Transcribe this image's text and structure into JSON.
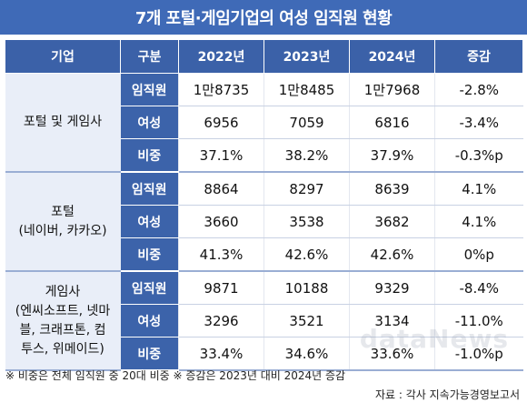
{
  "title": "7개 포털·게임기업의 여성 임직원 현황",
  "chart_data": {
    "type": "table",
    "headers": [
      "기업",
      "구분",
      "2022년",
      "2023년",
      "2024년",
      "증감"
    ],
    "groups": [
      {
        "company": "포털 및 게임사",
        "rows": [
          {
            "kind": "임직원",
            "y2022": "1만8735",
            "y2023": "1만8485",
            "y2024": "1만7968",
            "change": "-2.8%"
          },
          {
            "kind": "여성",
            "y2022": "6956",
            "y2023": "7059",
            "y2024": "6816",
            "change": "-3.4%"
          },
          {
            "kind": "비중",
            "y2022": "37.1%",
            "y2023": "38.2%",
            "y2024": "37.9%",
            "change": "-0.3%p"
          }
        ]
      },
      {
        "company": "포털\n(네이버, 카카오)",
        "rows": [
          {
            "kind": "임직원",
            "y2022": "8864",
            "y2023": "8297",
            "y2024": "8639",
            "change": "4.1%"
          },
          {
            "kind": "여성",
            "y2022": "3660",
            "y2023": "3538",
            "y2024": "3682",
            "change": "4.1%"
          },
          {
            "kind": "비중",
            "y2022": "41.3%",
            "y2023": "42.6%",
            "y2024": "42.6%",
            "change": "0%p"
          }
        ]
      },
      {
        "company": "게임사\n(엔씨소프트, 넷마\n블, 크래프톤, 컴\n투스, 위메이드)",
        "rows": [
          {
            "kind": "임직원",
            "y2022": "9871",
            "y2023": "10188",
            "y2024": "9329",
            "change": "-8.4%"
          },
          {
            "kind": "여성",
            "y2022": "3296",
            "y2023": "3521",
            "y2024": "3134",
            "change": "-11.0%"
          },
          {
            "kind": "비중",
            "y2022": "33.4%",
            "y2023": "34.6%",
            "y2024": "33.6%",
            "change": "-1.0%p"
          }
        ]
      }
    ]
  },
  "footnote": "※ 비중은 전체 임직원 중 20대 비중  ※ 증감은 2023년 대비 2024년 증감",
  "source": "자료 : 각사 지속가능경영보고서",
  "watermark": "dataNews",
  "colors": {
    "header_bg": "#3b61a8",
    "title_bg": "#3f6ab7",
    "company_bg": "#e9eef8"
  }
}
